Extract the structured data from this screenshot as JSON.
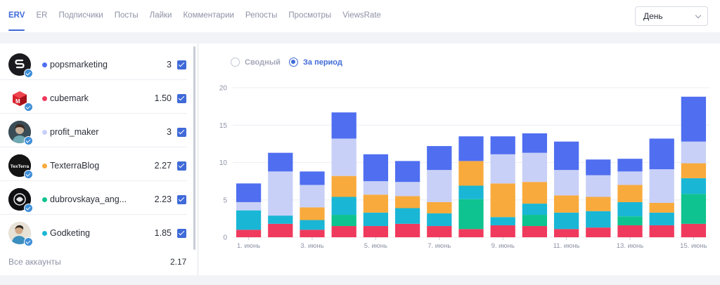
{
  "tabs": [
    {
      "label": "ERV",
      "active": true
    },
    {
      "label": "ER"
    },
    {
      "label": "Подписчики"
    },
    {
      "label": "Посты"
    },
    {
      "label": "Лайки"
    },
    {
      "label": "Комментарии"
    },
    {
      "label": "Репосты"
    },
    {
      "label": "Просмотры"
    },
    {
      "label": "ViewsRate"
    }
  ],
  "period_select": {
    "value": "День"
  },
  "accounts": [
    {
      "name": "popsmarketing",
      "value": "3",
      "color": "#4f6ef0",
      "avatar": "popsmarketing-logo",
      "checked": true
    },
    {
      "name": "cubemark",
      "value": "1.50",
      "color": "#ef3a5d",
      "avatar": "cubemark-logo",
      "checked": true
    },
    {
      "name": "profit_maker",
      "value": "3",
      "color": "#c8d0f7",
      "avatar": "profit-maker-photo",
      "checked": true
    },
    {
      "name": "TexterraBlog",
      "value": "2.27",
      "color": "#f8aa3c",
      "avatar": "texterra-logo",
      "checked": true
    },
    {
      "name": "dubrovskaya_ang...",
      "value": "2.23",
      "color": "#0ec38f",
      "avatar": "dubrovskaya-logo",
      "checked": true
    },
    {
      "name": "Godketing",
      "value": "1.85",
      "color": "#1ab6d6",
      "avatar": "godketing-photo",
      "checked": true
    }
  ],
  "avatar_texts": {
    "texterra": "TexTerra"
  },
  "all_accounts": {
    "label": "Все аккаунты",
    "value": "2.17"
  },
  "view_mode": {
    "options": [
      "Сводный",
      "За период"
    ],
    "selected": "За период"
  },
  "chart_data": {
    "type": "bar",
    "stacked": true,
    "ylim": [
      0,
      20
    ],
    "yticks": [
      0,
      5,
      10,
      15,
      20
    ],
    "x": [
      "1. июнь",
      "2. июнь",
      "3. июнь",
      "4. июнь",
      "5. июнь",
      "6. июнь",
      "7. июнь",
      "8. июнь",
      "9. июнь",
      "10. июнь",
      "11. июнь",
      "12. июнь",
      "13. июнь",
      "14. июнь",
      "15. июнь"
    ],
    "xtick_labels": [
      "1. июнь",
      "",
      "3. июнь",
      "",
      "5. июнь",
      "",
      "7. июнь",
      "",
      "9. июнь",
      "",
      "11. июнь",
      "",
      "13. июнь",
      "",
      "15. июнь"
    ],
    "series": [
      {
        "color": "#ef3a5d",
        "values": [
          1.0,
          1.8,
          1.0,
          1.5,
          1.5,
          1.8,
          1.5,
          1.1,
          1.6,
          1.5,
          1.1,
          1.3,
          1.6,
          1.6,
          1.8
        ]
      },
      {
        "color": "#0ec38f",
        "values": [
          0,
          0,
          0,
          1.5,
          0,
          0,
          0,
          4.0,
          0,
          1.5,
          0,
          0,
          1.2,
          0,
          4.0
        ]
      },
      {
        "color": "#1ab6d6",
        "values": [
          2.6,
          1.1,
          1.3,
          2.4,
          1.8,
          2.1,
          1.7,
          1.8,
          1.1,
          1.5,
          2.2,
          2.2,
          1.9,
          1.7,
          2.1
        ]
      },
      {
        "color": "#f8aa3c",
        "values": [
          0,
          0,
          1.7,
          2.8,
          2.4,
          1.6,
          1.5,
          3.3,
          4.5,
          2.9,
          2.3,
          1.9,
          2.3,
          1.3,
          2.0
        ]
      },
      {
        "color": "#c8d0f7",
        "values": [
          1.1,
          5.9,
          3.0,
          5.0,
          1.8,
          1.9,
          4.3,
          0,
          3.9,
          3.9,
          3.4,
          2.9,
          1.8,
          4.5,
          2.9
        ]
      },
      {
        "color": "#4f6ef0",
        "values": [
          2.5,
          2.5,
          1.8,
          3.5,
          3.6,
          2.8,
          3.2,
          3.3,
          2.4,
          2.6,
          3.8,
          2.1,
          1.7,
          4.1,
          6.0
        ]
      }
    ]
  }
}
